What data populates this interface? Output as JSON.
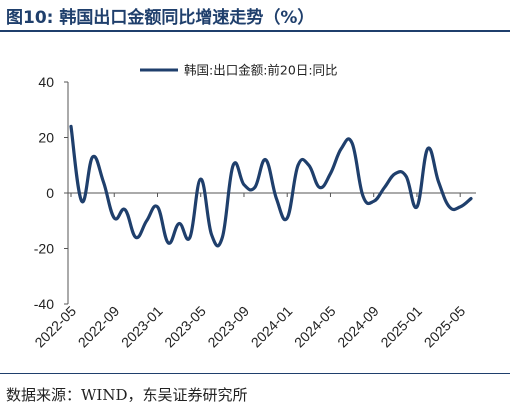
{
  "figure": {
    "title": "图10:  韩国出口金额同比增速走势（%）",
    "source": "数据来源：WIND，东吴证券研究所"
  },
  "chart_data": {
    "type": "line",
    "title": "",
    "xlabel": "",
    "ylabel": "",
    "ylim": [
      -40,
      40
    ],
    "yticks": [
      40,
      20,
      0,
      -20,
      -40
    ],
    "x_tick_labels": [
      "2022-05",
      "2022-09",
      "2023-01",
      "2023-05",
      "2023-09",
      "2024-01",
      "2024-05",
      "2024-09",
      "2025-01",
      "2025-05"
    ],
    "legend_position": "top-center",
    "grid": false,
    "colors": {
      "line": "#1f3f6c",
      "axis": "#555555"
    },
    "series": [
      {
        "name": "韩国:出口金额:前20日:同比",
        "x": [
          "2022-05",
          "2022-06",
          "2022-07",
          "2022-08",
          "2022-09",
          "2022-10",
          "2022-11",
          "2022-12",
          "2023-01",
          "2023-02",
          "2023-03",
          "2023-04",
          "2023-05",
          "2023-06",
          "2023-07",
          "2023-08",
          "2023-09",
          "2023-10",
          "2023-11",
          "2023-12",
          "2024-01",
          "2024-02",
          "2024-03",
          "2024-04",
          "2024-05",
          "2024-06",
          "2024-07",
          "2024-08",
          "2024-09",
          "2024-10",
          "2024-11",
          "2024-12",
          "2025-01",
          "2025-02",
          "2025-03",
          "2025-04",
          "2025-05",
          "2025-06"
        ],
        "values": [
          24,
          -3,
          13,
          4,
          -9,
          -6,
          -16,
          -10,
          -5,
          -18,
          -11,
          -16,
          5,
          -15,
          -16,
          10,
          3,
          2,
          12,
          -2,
          -9,
          10,
          10,
          2,
          7,
          16,
          18,
          -1,
          -3,
          2,
          7,
          6,
          -5,
          16,
          4,
          -5,
          -5,
          -2
        ]
      }
    ]
  }
}
